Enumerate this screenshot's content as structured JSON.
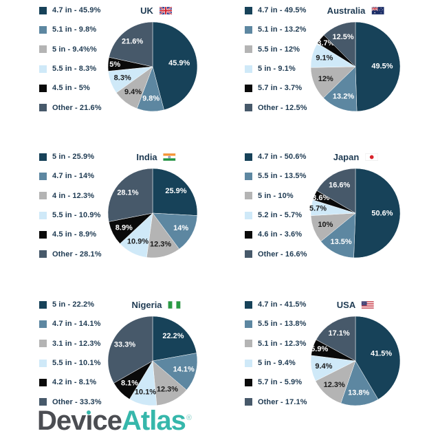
{
  "palette": [
    "#174259",
    "#5d87a1",
    "#b4b4b4",
    "#cfe9f8",
    "#0a0a0a",
    "#47596a"
  ],
  "slice_label_colors": [
    "#ffffff",
    "#ffffff",
    "#1a1a1a",
    "#1a1a1a",
    "#ffffff",
    "#ffffff"
  ],
  "legend_text_color": "#1e3a52",
  "chart_data": [
    {
      "type": "pie",
      "title": "UK",
      "flag": "uk",
      "legend_position": "left",
      "categories": [
        "4.7 in",
        "5.1 in",
        "5 in",
        "5.5 in",
        "4.5 in",
        "Other"
      ],
      "values": [
        45.9,
        9.8,
        9.4,
        8.3,
        5,
        21.6
      ],
      "slice_labels": [
        "45.9%",
        "9.8%",
        "9.4%",
        "8.3%",
        "5%",
        "21.6%"
      ],
      "legend_labels": [
        "4.7 in - 45.9%",
        "5.1 in - 9.8%",
        "5 in - 9.4%%",
        "5.5 in - 8.3%",
        "4.5 in - 5%",
        "Other - 21.6%"
      ]
    },
    {
      "type": "pie",
      "title": "Australia",
      "flag": "australia",
      "legend_position": "left",
      "categories": [
        "4.7 in",
        "5.1 in",
        "5.5 in",
        "5 in",
        "5.7 in",
        "Other"
      ],
      "values": [
        49.5,
        13.2,
        12,
        9.1,
        3.7,
        12.5
      ],
      "slice_labels": [
        "49.5%",
        "13.2%",
        "12%",
        "9.1%",
        "3.7%",
        "12.5%"
      ],
      "legend_labels": [
        "4.7 in - 49.5%",
        "5.1 in - 13.2%",
        "5.5 in - 12%",
        "5 in - 9.1%",
        "5.7 in - 3.7%",
        "Other - 12.5%"
      ]
    },
    {
      "type": "pie",
      "title": "India",
      "flag": "india",
      "legend_position": "left",
      "categories": [
        "5 in",
        "4.7 in",
        "4 in",
        "5.5 in",
        "4.5 in",
        "Other"
      ],
      "values": [
        25.9,
        14,
        12.3,
        10.9,
        8.9,
        28.1
      ],
      "slice_labels": [
        "25.9%",
        "14%",
        "12.3%",
        "10.9%",
        "8.9%",
        "28.1%"
      ],
      "legend_labels": [
        "5 in - 25.9%",
        "4.7 in - 14%",
        "4 in - 12.3%",
        "5.5 in - 10.9%",
        "4.5 in - 8.9%",
        "Other - 28.1%"
      ]
    },
    {
      "type": "pie",
      "title": "Japan",
      "flag": "japan",
      "legend_position": "left",
      "categories": [
        "4.7 in",
        "5.5 in",
        "5 in",
        "5.2 in",
        "4.6 in",
        "Other"
      ],
      "values": [
        50.6,
        13.5,
        10,
        5.7,
        3.6,
        16.6
      ],
      "slice_labels": [
        "50.6%",
        "13.5%",
        "10%",
        "5.7%",
        "3.6%",
        "16.6%"
      ],
      "legend_labels": [
        "4.7 in - 50.6%",
        "5.5 in - 13.5%",
        "5 in - 10%",
        "5.2 in - 5.7%",
        "4.6 in - 3.6%",
        "Other - 16.6%"
      ]
    },
    {
      "type": "pie",
      "title": "Nigeria",
      "flag": "nigeria",
      "legend_position": "left",
      "categories": [
        "5 in",
        "4.7 in",
        "3.1 in",
        "5.5 in",
        "4.2 in",
        "Other"
      ],
      "values": [
        22.2,
        14.1,
        12.3,
        10.1,
        8.1,
        33.3
      ],
      "slice_labels": [
        "22.2%",
        "14.1%",
        "12.3%",
        "10.1%",
        "8.1%",
        "33.3%"
      ],
      "legend_labels": [
        "5 in - 22.2%",
        "4.7 in - 14.1%",
        "3.1 in - 12.3%",
        "5.5 in - 10.1%",
        "4.2 in - 8.1%",
        "Other - 33.3%"
      ]
    },
    {
      "type": "pie",
      "title": "USA",
      "flag": "usa",
      "legend_position": "left",
      "categories": [
        "4.7 in",
        "5.5 in",
        "5.1 in",
        "5 in",
        "5.7 in",
        "Other"
      ],
      "values": [
        41.5,
        13.8,
        12.3,
        9.4,
        5.9,
        17.1
      ],
      "slice_labels": [
        "41.5%",
        "13.8%",
        "12.3%",
        "9.4%",
        "5.9%",
        "17.1%"
      ],
      "legend_labels": [
        "4.7 in - 41.5%",
        "5.5 in - 13.8%",
        "5.1 in - 12.3%",
        "5 in - 9.4%",
        "5.7 in - 5.9%",
        "Other - 17.1%"
      ]
    }
  ],
  "logo": {
    "pre_i": "Dev",
    "i_char": "ı",
    "post_i": "ce",
    "atlas": "Atlas",
    "registered": "®",
    "device_color": "#4b4d52",
    "atlas_color": "#36b7ab"
  }
}
